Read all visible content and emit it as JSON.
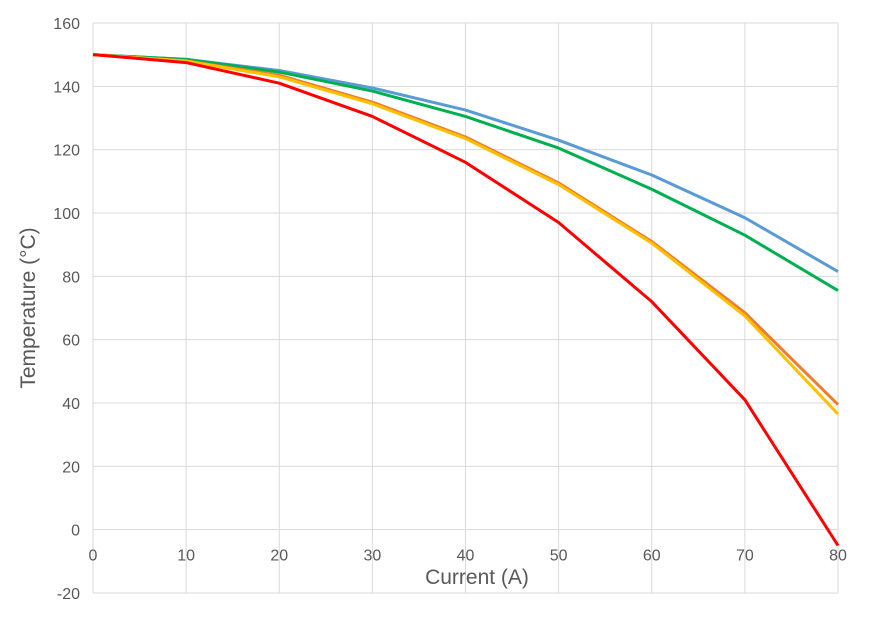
{
  "chart_data": {
    "type": "line",
    "title": "",
    "xlabel": "Current (A)",
    "ylabel": "Temperature (°C)",
    "xlim": [
      0,
      80
    ],
    "ylim": [
      -20,
      160
    ],
    "xticks": [
      0,
      10,
      20,
      30,
      40,
      50,
      60,
      70,
      80
    ],
    "yticks": [
      -20,
      0,
      20,
      40,
      60,
      80,
      100,
      120,
      140,
      160
    ],
    "grid": true,
    "legend": "none",
    "x": [
      0,
      10,
      20,
      30,
      40,
      50,
      60,
      70,
      80
    ],
    "series": [
      {
        "name": "blue",
        "color": "#5B9BD5",
        "values": [
          150,
          148.5,
          145,
          139.5,
          132.5,
          123,
          112,
          98.5,
          81.5
        ]
      },
      {
        "name": "green",
        "color": "#00B050",
        "values": [
          150,
          148.5,
          144.5,
          138.5,
          130.5,
          120.5,
          107.5,
          93,
          75.5
        ]
      },
      {
        "name": "orange",
        "color": "#ED7D31",
        "values": [
          150,
          148,
          143.5,
          135,
          124,
          109.5,
          91,
          68.5,
          39.5
        ]
      },
      {
        "name": "yellow",
        "color": "#FFC000",
        "values": [
          150,
          148,
          143,
          134.5,
          123.5,
          109,
          90.5,
          67.5,
          36.5
        ]
      },
      {
        "name": "red",
        "color": "#FF0000",
        "values": [
          150,
          147.5,
          141,
          130.5,
          116,
          97,
          72,
          41,
          -5
        ]
      }
    ]
  }
}
